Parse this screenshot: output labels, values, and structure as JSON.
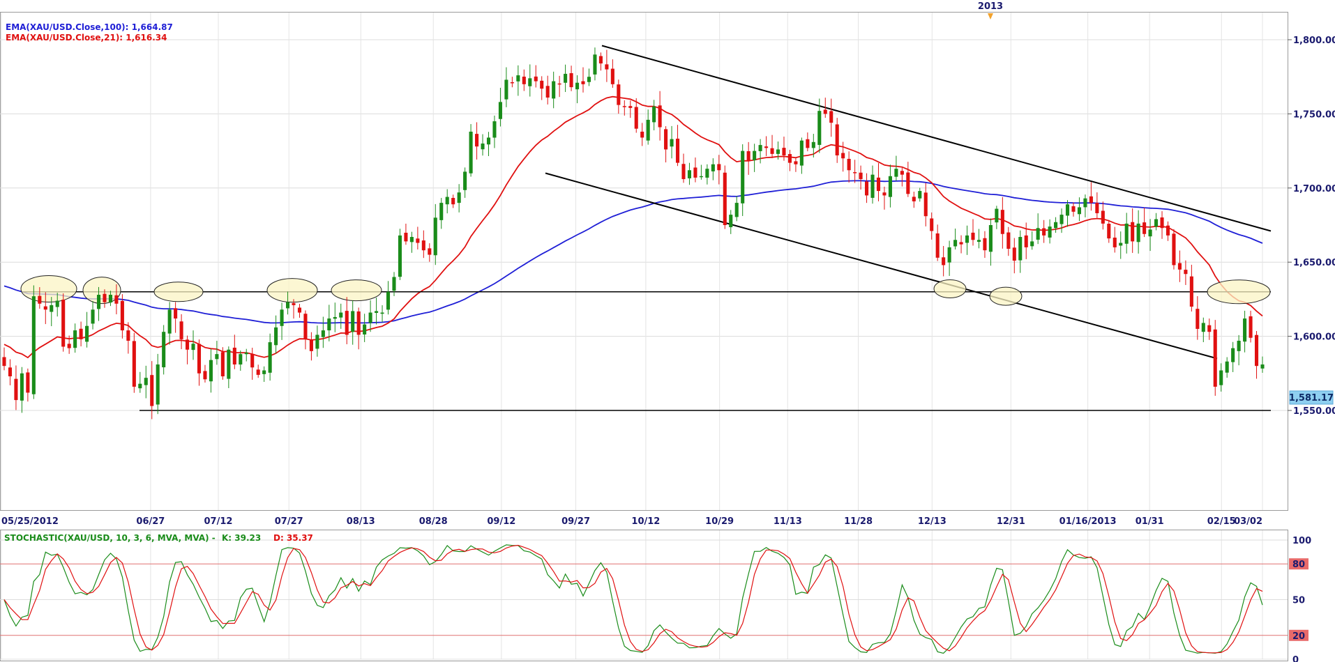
{
  "chart_data": [
    {
      "type": "candlestick",
      "symbol": "XAU/USD",
      "legend": [
        {
          "label": "EMA(XAU/USD.Close,100): 1,664.87",
          "color": "#1f1fd6"
        },
        {
          "label": "EMA(XAU/USD.Close,21): 1,616.34",
          "color": "#e01010"
        }
      ],
      "year_marker": "2013",
      "x_ticks": [
        "05/25/2012",
        "06/27",
        "07/12",
        "07/27",
        "08/13",
        "08/28",
        "09/12",
        "09/27",
        "10/12",
        "10/29",
        "11/13",
        "11/28",
        "12/13",
        "12/31",
        "01/16/2013",
        "01/31",
        "02/15",
        "03/02"
      ],
      "y_ticks": [
        1550,
        1600,
        1650,
        1700,
        1750,
        1800
      ],
      "y_tick_labels": [
        "1,550.00",
        "1,600.00",
        "1,650.00",
        "1,700.00",
        "1,750.00",
        "1,800.00"
      ],
      "ylim": [
        1515,
        1822
      ],
      "last_price": "1,581.17",
      "last_price_value": 1581.17,
      "up_color": "#1a8c1a",
      "down_color": "#e01010",
      "closes": [
        1580,
        1573,
        1557,
        1575,
        1562,
        1627,
        1622,
        1618,
        1621,
        1624,
        1593,
        1592,
        1604,
        1598,
        1607,
        1618,
        1628,
        1623,
        1628,
        1622,
        1604,
        1597,
        1566,
        1568,
        1572,
        1553,
        1581,
        1603,
        1618,
        1612,
        1598,
        1591,
        1595,
        1575,
        1571,
        1584,
        1588,
        1573,
        1591,
        1581,
        1588,
        1589,
        1579,
        1574,
        1577,
        1596,
        1606,
        1618,
        1623,
        1621,
        1616,
        1598,
        1590,
        1601,
        1604,
        1612,
        1613,
        1616,
        1601,
        1617,
        1601,
        1608,
        1616,
        1617,
        1616,
        1630,
        1640,
        1668,
        1664,
        1667,
        1663,
        1658,
        1655,
        1680,
        1690,
        1694,
        1689,
        1697,
        1711,
        1738,
        1728,
        1730,
        1734,
        1745,
        1758,
        1773,
        1771,
        1776,
        1770,
        1774,
        1772,
        1767,
        1761,
        1772,
        1770,
        1777,
        1768,
        1771,
        1770,
        1775,
        1790,
        1784,
        1780,
        1770,
        1756,
        1755,
        1754,
        1740,
        1734,
        1746,
        1755,
        1741,
        1726,
        1733,
        1717,
        1706,
        1712,
        1707,
        1708,
        1713,
        1716,
        1712,
        1675,
        1682,
        1690,
        1725,
        1718,
        1725,
        1729,
        1727,
        1723,
        1726,
        1722,
        1717,
        1716,
        1732,
        1727,
        1731,
        1752,
        1750,
        1744,
        1722,
        1720,
        1712,
        1710,
        1706,
        1695,
        1709,
        1698,
        1695,
        1708,
        1713,
        1709,
        1696,
        1691,
        1698,
        1681,
        1671,
        1653,
        1648,
        1660,
        1665,
        1662,
        1668,
        1665,
        1665,
        1658,
        1675,
        1686,
        1669,
        1659,
        1651,
        1667,
        1660,
        1664,
        1673,
        1668,
        1674,
        1677,
        1682,
        1689,
        1684,
        1687,
        1693,
        1690,
        1683,
        1676,
        1666,
        1660,
        1663,
        1676,
        1664,
        1676,
        1669,
        1672,
        1679,
        1673,
        1668,
        1648,
        1645,
        1642,
        1620,
        1605,
        1609,
        1603,
        1566,
        1577,
        1583,
        1592,
        1597,
        1612,
        1599,
        1580,
        1581
      ]
    },
    {
      "type": "line",
      "label": "STOCHASTIC(XAU/USD, 10, 3, 6, MVA, MVA) -",
      "k_label": "K: 39.23",
      "d_label": "D: 35.37",
      "k_color": "#1a8c1a",
      "d_color": "#e01010",
      "y_ticks": [
        0,
        20,
        50,
        80,
        100
      ],
      "y_tick_labels": [
        "0",
        "20",
        "50",
        "80",
        "100"
      ],
      "overbought": 80,
      "oversold": 20,
      "ylim": [
        0,
        100
      ]
    }
  ]
}
